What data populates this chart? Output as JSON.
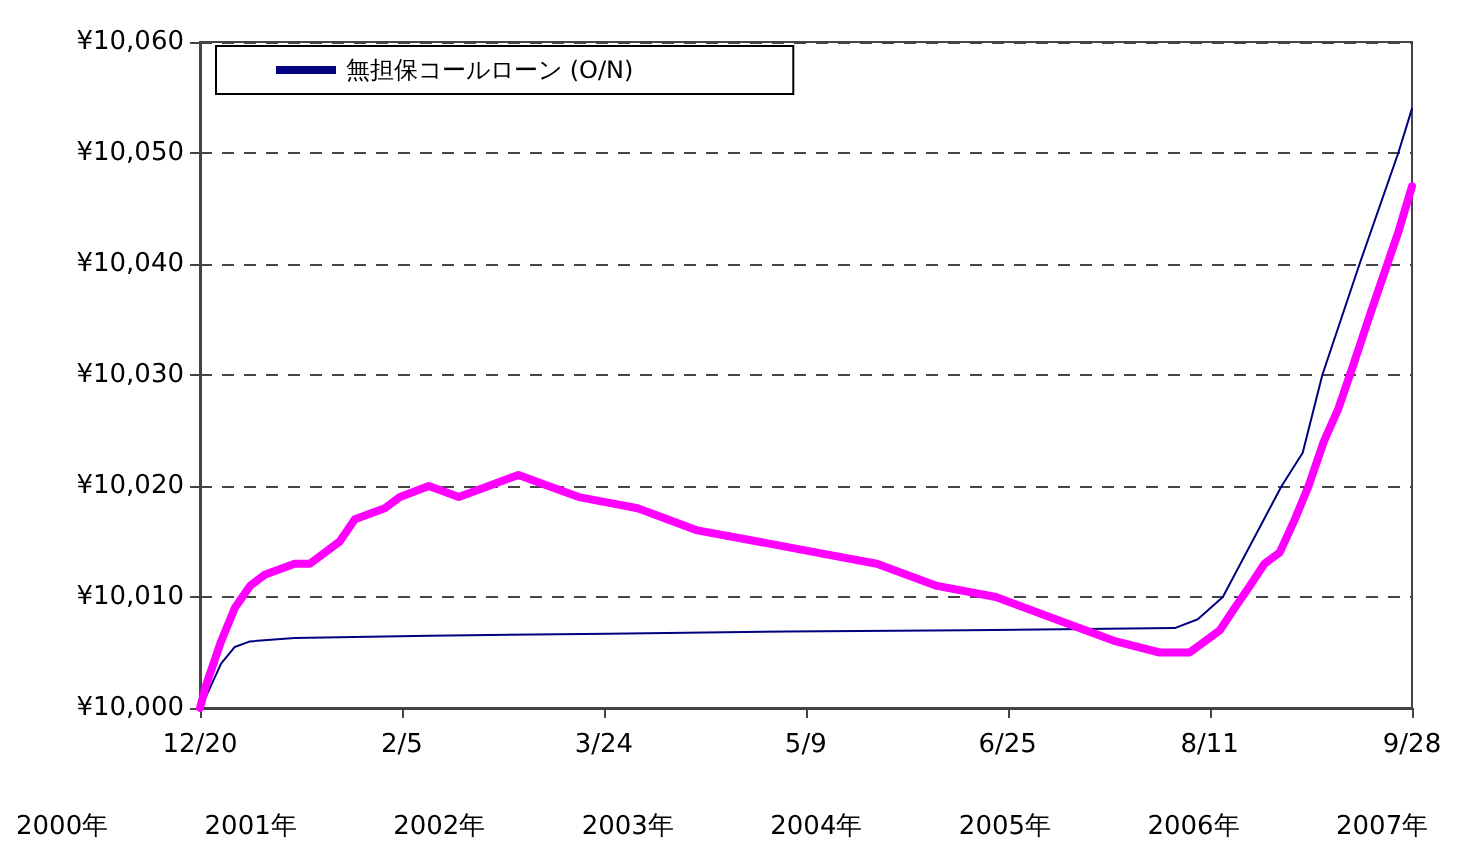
{
  "chart_data": {
    "type": "line",
    "legend": "top left",
    "grid": "y",
    "line_style": "solid",
    "marker": "none",
    "xlim": [
      "2000-12-20",
      "2007-09-28"
    ],
    "xticks": [
      {
        "value": "2000-12-20",
        "label": "12/20"
      },
      {
        "value": "2002-02-05",
        "label": "2/5"
      },
      {
        "value": "2003-03-24",
        "label": "3/24"
      },
      {
        "value": "2004-05-09",
        "label": "5/9"
      },
      {
        "value": "2005-06-25",
        "label": "6/25"
      },
      {
        "value": "2006-08-11",
        "label": "8/11"
      },
      {
        "value": "2007-09-28",
        "label": "9/28"
      }
    ],
    "ylim": [
      10000,
      10060
    ],
    "yticks": [
      {
        "value": 10000,
        "label": "¥10,000"
      },
      {
        "value": 10010,
        "label": "¥10,010"
      },
      {
        "value": 10020,
        "label": "¥10,020"
      },
      {
        "value": 10030,
        "label": "¥10,030"
      },
      {
        "value": 10040,
        "label": "¥10,040"
      },
      {
        "value": 10050,
        "label": "¥10,050"
      },
      {
        "value": 10060,
        "label": "¥10,060"
      }
    ],
    "annotations": [
      "2000年",
      "2001年",
      "2002年",
      "2003年",
      "2004年",
      "2005年",
      "2006年",
      "2007年"
    ],
    "series": [
      {
        "color": "#ff00ff",
        "x": [
          "2000-12-20",
          "2001-01-01",
          "2001-02-01",
          "2001-03-01",
          "2001-04-01",
          "2001-05-01",
          "2001-07-01",
          "2001-08-01",
          "2001-09-01",
          "2001-10-01",
          "2001-11-01",
          "2002-01-01",
          "2002-02-01",
          "2002-04-01",
          "2002-06-01",
          "2002-08-01",
          "2002-10-01",
          "2002-12-01",
          "2003-02-01",
          "2003-06-01",
          "2003-10-01",
          "2004-02-01",
          "2004-06-01",
          "2004-10-01",
          "2005-02-01",
          "2005-06-01",
          "2005-10-01",
          "2006-02-01",
          "2006-05-01",
          "2006-07-01",
          "2006-08-01",
          "2006-09-01",
          "2006-10-01",
          "2006-11-01",
          "2006-12-01",
          "2007-01-01",
          "2007-02-01",
          "2007-03-01",
          "2007-04-01",
          "2007-05-01",
          "2007-06-01",
          "2007-07-01",
          "2007-08-01",
          "2007-09-01",
          "2007-09-28"
        ],
        "values": [
          10000,
          10002,
          10006,
          10009,
          10011,
          10012,
          10013,
          10013,
          10014,
          10015,
          10017,
          10018,
          10019,
          10020,
          10019,
          10020,
          10021,
          10020,
          10019,
          10018,
          10016,
          10015,
          10014,
          10013,
          10011,
          10010,
          10008,
          10006,
          10005,
          10005,
          10006,
          10007,
          10009,
          10011,
          10013,
          10014,
          10017,
          10020,
          10024,
          10027,
          10031,
          10035,
          10039,
          10043,
          10047
        ]
      },
      {
        "name": "無担保コールローン (O/N)",
        "color": "#000080",
        "x": [
          "2000-12-20",
          "2001-01-01",
          "2001-02-01",
          "2001-03-01",
          "2001-04-01",
          "2001-07-01",
          "2002-04-01",
          "2003-04-01",
          "2004-04-01",
          "2005-04-01",
          "2006-06-01",
          "2006-07-18",
          "2006-09-07",
          "2007-01-05",
          "2007-02-17",
          "2007-03-29",
          "2007-06-13",
          "2007-08-31",
          "2007-09-28"
        ],
        "values": [
          10000,
          10001,
          10004,
          10005.5,
          10006,
          10006.3,
          10006.5,
          10006.7,
          10006.9,
          10007,
          10007.2,
          10008,
          10010,
          10020,
          10023,
          10030,
          10040,
          10050,
          10054
        ]
      }
    ]
  }
}
